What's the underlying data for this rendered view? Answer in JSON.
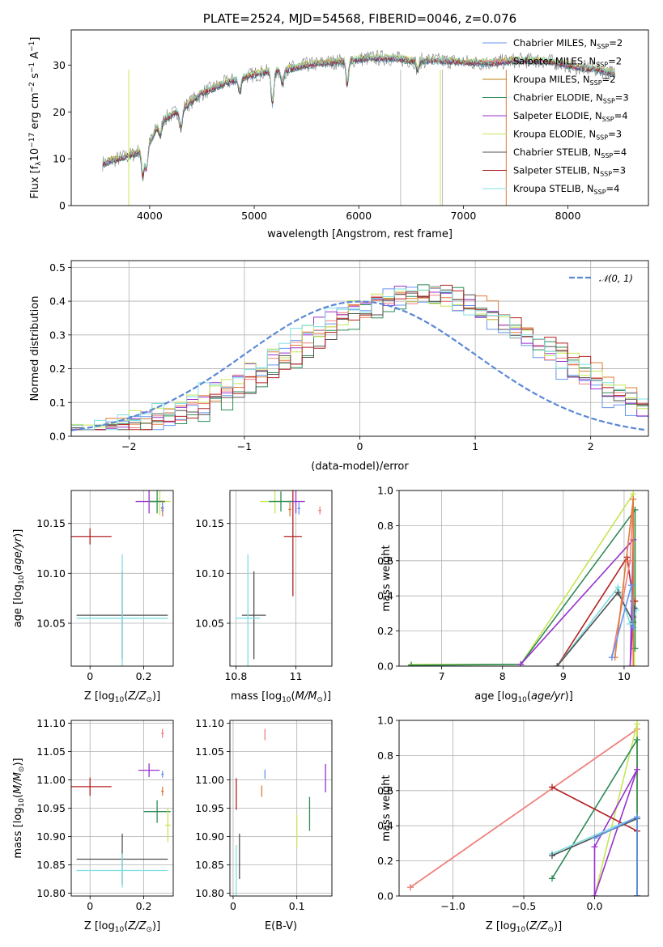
{
  "colors": {
    "Chabrier MILES": "#6495ed",
    "Salpeter MILES": "#f08080",
    "Kroupa MILES": "#b8860b",
    "Chabrier ELODIE": "#2e8b57",
    "Salpeter ELODIE": "#9932cc",
    "Kroupa ELODIE": "#c6e656",
    "Chabrier STELIB": "#505050",
    "Salpeter STELIB": "#b22222",
    "Kroupa STELIB": "#7ddfe4",
    "orange": "#e07b39",
    "normal": "#5b88d6"
  },
  "chart_data": [
    {
      "id": "spectrum",
      "type": "line",
      "title": "PLATE=2524, MJD=54568, FIBERID=0046, z=0.076",
      "xlabel": "wavelength [Angstrom, rest frame]",
      "ylabel": "Flux [f_λ 10^-17 erg cm^-2 s^-1 A^-1]",
      "xlim": [
        3250,
        8770
      ],
      "ylim": [
        0,
        37.5
      ],
      "xticks": [
        4000,
        5000,
        6000,
        7000,
        8000
      ],
      "yticks": [
        0,
        10,
        20,
        30
      ],
      "legend_position": "upper right",
      "series": [
        {
          "name": "Chabrier MILES, N_SSP=2"
        },
        {
          "name": "Salpeter MILES, N_SSP=2"
        },
        {
          "name": "Kroupa MILES, N_SSP=2"
        },
        {
          "name": "Chabrier ELODIE, N_SSP=3"
        },
        {
          "name": "Salpeter ELODIE, N_SSP=4"
        },
        {
          "name": "Kroupa ELODIE, N_SSP=3"
        },
        {
          "name": "Chabrier STELIB, N_SSP=4"
        },
        {
          "name": "Salpeter STELIB, N_SSP=3"
        },
        {
          "name": "Kroupa STELIB, N_SSP=4"
        }
      ],
      "continuum": {
        "x": [
          3550,
          3700,
          3850,
          4000,
          4100,
          4300,
          4500,
          4700,
          4900,
          5100,
          5300,
          5500,
          5700,
          5900,
          6100,
          6300,
          6500,
          6700,
          6900,
          7100,
          7300,
          7500,
          7700,
          7900,
          8100,
          8300,
          8500
        ],
        "y": [
          9,
          10,
          11,
          13.5,
          18,
          20.5,
          24,
          26,
          27.5,
          28.5,
          29,
          30,
          30.5,
          31,
          31.5,
          31.5,
          31,
          31,
          30.8,
          30.5,
          30.5,
          31,
          31,
          30.5,
          29.5,
          29,
          28
        ]
      }
    },
    {
      "id": "residuals",
      "type": "histogram",
      "xlabel": "(data-model)/error",
      "ylabel": "Normed distribution",
      "xlim": [
        -2.5,
        2.5
      ],
      "ylim": [
        0,
        0.52
      ],
      "xticks": [
        -2,
        -1,
        0,
        1,
        2
      ],
      "yticks": [
        0.0,
        0.1,
        0.2,
        0.3,
        0.4,
        0.5
      ],
      "grid": true,
      "legend": "𝒩(0, 1)",
      "normal": {
        "mean": 0,
        "sigma": 1
      }
    },
    {
      "id": "age-vs-Z",
      "type": "errorbar",
      "xlabel": "Z [log10(Z/Z⊙)]",
      "ylabel": "age  [log10(age/yr)]",
      "xlim": [
        -0.07,
        0.31
      ],
      "ylim": [
        10.007,
        10.183
      ],
      "xticks": [
        0.0,
        0.2
      ],
      "yticks": [
        10.05,
        10.1,
        10.15
      ],
      "grid": true,
      "points": [
        {
          "x": 0.0,
          "y": 10.137,
          "xerr": 0.08,
          "yerr": 0.008,
          "c": "Salpeter STELIB"
        },
        {
          "x": 0.12,
          "y": 10.058,
          "xerr": 0.17,
          "yerr": 0.044,
          "c": "Chabrier STELIB"
        },
        {
          "x": 0.12,
          "y": 10.055,
          "xerr": 0.17,
          "yerr": 0.064,
          "c": "Kroupa STELIB"
        },
        {
          "x": 0.22,
          "y": 10.172,
          "xerr": 0.05,
          "yerr": 0.012,
          "c": "Salpeter ELODIE"
        },
        {
          "x": 0.26,
          "y": 10.172,
          "xerr": 0.04,
          "yerr": 0.014,
          "c": "Kroupa ELODIE"
        },
        {
          "x": 0.25,
          "y": 10.172,
          "xerr": 0.03,
          "yerr": 0.012,
          "c": "Chabrier ELODIE"
        },
        {
          "x": 0.27,
          "y": 10.165,
          "xerr": 0.005,
          "yerr": 0.008,
          "c": "orange"
        },
        {
          "x": 0.27,
          "y": 10.163,
          "xerr": 0.005,
          "yerr": 0.006,
          "c": "Salpeter MILES"
        },
        {
          "x": 0.27,
          "y": 10.166,
          "xerr": 0.005,
          "yerr": 0.005,
          "c": "Chabrier MILES"
        }
      ]
    },
    {
      "id": "age-vs-mass",
      "type": "errorbar",
      "xlabel": "mass [log10(M/M⊙)]",
      "ylabel": "",
      "xlim": [
        10.78,
        11.12
      ],
      "ylim": [
        10.007,
        10.183
      ],
      "xticks": [
        10.8,
        11.0
      ],
      "yticks": [
        10.05,
        10.1,
        10.15
      ],
      "grid": true,
      "points": [
        {
          "x": 10.99,
          "y": 10.137,
          "xerr": 0.03,
          "yerr": 0.06,
          "c": "Salpeter STELIB"
        },
        {
          "x": 10.86,
          "y": 10.058,
          "xerr": 0.04,
          "yerr": 0.044,
          "c": "Chabrier STELIB"
        },
        {
          "x": 10.84,
          "y": 10.055,
          "xerr": 0.04,
          "yerr": 0.064,
          "c": "Kroupa STELIB"
        },
        {
          "x": 11.0,
          "y": 10.172,
          "xerr": 0.03,
          "yerr": 0.012,
          "c": "Salpeter ELODIE"
        },
        {
          "x": 10.93,
          "y": 10.172,
          "xerr": 0.05,
          "yerr": 0.012,
          "c": "Kroupa ELODIE"
        },
        {
          "x": 10.95,
          "y": 10.172,
          "xerr": 0.04,
          "yerr": 0.01,
          "c": "Chabrier ELODIE"
        },
        {
          "x": 10.98,
          "y": 10.164,
          "xerr": 0.005,
          "yerr": 0.007,
          "c": "orange"
        },
        {
          "x": 11.08,
          "y": 10.163,
          "xerr": 0.005,
          "yerr": 0.004,
          "c": "Salpeter MILES"
        },
        {
          "x": 11.01,
          "y": 10.165,
          "xerr": 0.005,
          "yerr": 0.006,
          "c": "Chabrier MILES"
        }
      ]
    },
    {
      "id": "massweight-vs-age",
      "type": "line",
      "xlabel": "age  [log10(age/yr)]",
      "ylabel": "mass weight",
      "xlim": [
        6.3,
        10.4
      ],
      "ylim": [
        0,
        1.0
      ],
      "xticks": [
        7,
        8,
        9,
        10
      ],
      "yticks": [
        0.0,
        0.2,
        0.4,
        0.6,
        0.8,
        1.0
      ],
      "grid": true,
      "series": [
        {
          "c": "Kroupa ELODIE",
          "x": [
            6.5,
            8.3,
            10.15,
            10.17
          ],
          "y": [
            0.01,
            0.01,
            0.98,
            0.0
          ]
        },
        {
          "c": "Chabrier ELODIE",
          "x": [
            6.5,
            8.3,
            10.18,
            10.18
          ],
          "y": [
            0.005,
            0.01,
            0.89,
            0.1
          ]
        },
        {
          "c": "Salpeter ELODIE",
          "x": [
            8.3,
            10.15,
            10.1,
            10.15
          ],
          "y": [
            0.01,
            0.72,
            0.0,
            0.28
          ]
        },
        {
          "c": "Salpeter STELIB",
          "x": [
            8.9,
            10.05,
            10.15,
            10.18
          ],
          "y": [
            0.0,
            0.62,
            0.37,
            0.37
          ]
        },
        {
          "c": "Kroupa STELIB",
          "x": [
            8.9,
            9.9,
            10.1,
            10.2
          ],
          "y": [
            0.0,
            0.45,
            0.24,
            0.32
          ]
        },
        {
          "c": "Chabrier STELIB",
          "x": [
            8.9,
            9.9,
            10.15,
            10.17
          ],
          "y": [
            0.0,
            0.42,
            0.25,
            0.33
          ]
        },
        {
          "c": "Salpeter MILES",
          "x": [
            9.8,
            10.1,
            10.15
          ],
          "y": [
            0.05,
            0.6,
            0.95
          ]
        },
        {
          "c": "orange",
          "x": [
            9.85,
            10.15,
            10.15
          ],
          "y": [
            0.05,
            0.95,
            0.0
          ]
        },
        {
          "c": "Chabrier MILES",
          "x": [
            9.8,
            10.12,
            10.15
          ],
          "y": [
            0.05,
            0.46,
            0.22
          ]
        }
      ]
    },
    {
      "id": "mass-vs-Z",
      "type": "errorbar",
      "xlabel": "Z [log10(Z/Z⊙)]",
      "ylabel": "mass [log10(M/M⊙)]",
      "xlim": [
        -0.07,
        0.31
      ],
      "ylim": [
        10.795,
        11.105
      ],
      "xticks": [
        0.0,
        0.2
      ],
      "yticks": [
        10.8,
        10.85,
        10.9,
        10.95,
        11.0,
        11.05,
        11.1
      ],
      "grid": true,
      "points": [
        {
          "x": 0.0,
          "y": 10.988,
          "xerr": 0.08,
          "yerr": 0.016,
          "c": "Salpeter STELIB"
        },
        {
          "x": 0.12,
          "y": 10.86,
          "xerr": 0.17,
          "yerr": 0.045,
          "c": "Chabrier STELIB"
        },
        {
          "x": 0.12,
          "y": 10.84,
          "xerr": 0.17,
          "yerr": 0.03,
          "c": "Kroupa STELIB"
        },
        {
          "x": 0.22,
          "y": 11.017,
          "xerr": 0.04,
          "yerr": 0.012,
          "c": "Salpeter ELODIE"
        },
        {
          "x": 0.25,
          "y": 10.944,
          "xerr": 0.05,
          "yerr": 0.02,
          "c": "Chabrier ELODIE"
        },
        {
          "x": 0.29,
          "y": 10.92,
          "xerr": 0.01,
          "yerr": 0.03,
          "c": "Kroupa ELODIE"
        },
        {
          "x": 0.27,
          "y": 11.082,
          "xerr": 0.005,
          "yerr": 0.008,
          "c": "Salpeter MILES"
        },
        {
          "x": 0.27,
          "y": 10.98,
          "xerr": 0.005,
          "yerr": 0.008,
          "c": "orange"
        },
        {
          "x": 0.27,
          "y": 11.01,
          "xerr": 0.005,
          "yerr": 0.006,
          "c": "Chabrier MILES"
        }
      ]
    },
    {
      "id": "mass-vs-EBV",
      "type": "errorbar",
      "xlabel": "E(B-V)",
      "ylabel": "",
      "xlim": [
        -0.005,
        0.155
      ],
      "ylim": [
        10.795,
        11.105
      ],
      "xticks": [
        0.0,
        0.1
      ],
      "yticks": [
        10.8,
        10.85,
        10.9,
        10.95,
        11.0,
        11.05,
        11.1
      ],
      "grid": true,
      "points": [
        {
          "x": 0.005,
          "y": 10.975,
          "xerr": 0.0,
          "yerr": 0.028,
          "c": "Salpeter STELIB"
        },
        {
          "x": 0.01,
          "y": 10.865,
          "xerr": 0.0,
          "yerr": 0.04,
          "c": "Chabrier STELIB"
        },
        {
          "x": 0.005,
          "y": 10.84,
          "xerr": 0.0,
          "yerr": 0.045,
          "c": "Kroupa STELIB"
        },
        {
          "x": 0.145,
          "y": 11.003,
          "xerr": 0.0,
          "yerr": 0.025,
          "c": "Salpeter ELODIE"
        },
        {
          "x": 0.12,
          "y": 10.94,
          "xerr": 0.0,
          "yerr": 0.03,
          "c": "Chabrier ELODIE"
        },
        {
          "x": 0.1,
          "y": 10.91,
          "xerr": 0.0,
          "yerr": 0.03,
          "c": "Kroupa ELODIE"
        },
        {
          "x": 0.05,
          "y": 11.08,
          "xerr": 0.0,
          "yerr": 0.01,
          "c": "Salpeter MILES"
        },
        {
          "x": 0.045,
          "y": 10.98,
          "xerr": 0.0,
          "yerr": 0.01,
          "c": "orange"
        },
        {
          "x": 0.05,
          "y": 11.01,
          "xerr": 0.0,
          "yerr": 0.008,
          "c": "Chabrier MILES"
        }
      ]
    },
    {
      "id": "massweight-vs-Z",
      "type": "line",
      "xlabel": "Z [log10(Z/Z⊙)]",
      "ylabel": "mass weight",
      "xlim": [
        -1.38,
        0.38
      ],
      "ylim": [
        0,
        1.0
      ],
      "xticks": [
        -1.0,
        -0.5,
        0.0
      ],
      "yticks": [
        0.0,
        0.2,
        0.4,
        0.6,
        0.8,
        1.0
      ],
      "grid": true,
      "series": [
        {
          "c": "orange",
          "x": [
            -1.3,
            0.3,
            0.3
          ],
          "y": [
            0.05,
            0.95,
            0.0
          ]
        },
        {
          "c": "Salpeter MILES",
          "x": [
            -1.3,
            0.3
          ],
          "y": [
            0.05,
            0.95
          ]
        },
        {
          "c": "Kroupa ELODIE",
          "x": [
            0.0,
            0.3,
            0.3
          ],
          "y": [
            0.0,
            0.98,
            0.0
          ]
        },
        {
          "c": "Chabrier ELODIE",
          "x": [
            -0.3,
            0.3,
            0.3
          ],
          "y": [
            0.1,
            0.89,
            0.0
          ]
        },
        {
          "c": "Salpeter ELODIE",
          "x": [
            0.0,
            0.3,
            0.0,
            0.0
          ],
          "y": [
            0.0,
            0.72,
            0.28,
            0.0
          ]
        },
        {
          "c": "Salpeter STELIB",
          "x": [
            -0.3,
            0.3,
            0.3
          ],
          "y": [
            0.62,
            0.37,
            0.0
          ]
        },
        {
          "c": "Kroupa STELIB",
          "x": [
            -0.3,
            0.3,
            0.3
          ],
          "y": [
            0.24,
            0.45,
            0.0
          ]
        },
        {
          "c": "Chabrier STELIB",
          "x": [
            -0.3,
            0.3,
            0.3
          ],
          "y": [
            0.23,
            0.44,
            0.0
          ]
        },
        {
          "c": "Chabrier MILES",
          "x": [
            0.0,
            0.3,
            0.3
          ],
          "y": [
            0.33,
            0.45,
            0.0
          ]
        }
      ]
    }
  ]
}
